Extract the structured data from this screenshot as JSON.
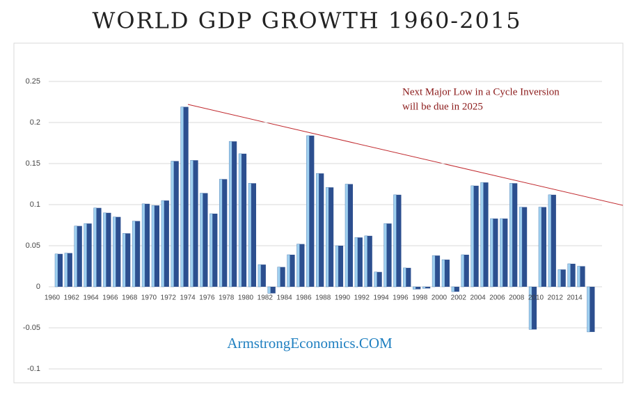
{
  "chart_data": {
    "type": "bar",
    "title": "WORLD GDP GROWTH 1960-2015",
    "annotations": [
      "Next Major Low in a Cycle Inversion",
      "will be due in 2025"
    ],
    "watermark": "ArmstrongEconomics.COM",
    "categories": [
      "1960",
      null,
      "1962",
      null,
      "1964",
      null,
      "1966",
      null,
      "1968",
      null,
      "1970",
      null,
      "1972",
      null,
      "1974",
      null,
      "1976",
      null,
      "1978",
      null,
      "1980",
      null,
      "1982",
      null,
      "1984",
      null,
      "1986",
      null,
      "1988",
      null,
      "1990",
      null,
      "1992",
      null,
      "1994",
      null,
      "1996",
      null,
      "1998",
      null,
      "2000",
      null,
      "2002",
      null,
      "2004",
      null,
      "2006",
      null,
      "2008",
      null,
      "2010",
      null,
      "2012",
      null,
      "2014",
      null
    ],
    "values": [
      0.04,
      0.041,
      0.074,
      0.077,
      0.096,
      0.09,
      0.085,
      0.065,
      0.08,
      0.101,
      0.099,
      0.105,
      0.153,
      0.219,
      0.154,
      0.114,
      0.089,
      0.131,
      0.177,
      0.162,
      0.126,
      0.027,
      -0.008,
      0.024,
      0.039,
      0.052,
      0.184,
      0.138,
      0.121,
      0.05,
      0.125,
      0.06,
      0.062,
      0.018,
      0.077,
      0.112,
      0.023,
      -0.003,
      -0.002,
      0.038,
      0.033,
      -0.006,
      0.039,
      0.123,
      0.127,
      0.083,
      0.083,
      0.126,
      0.097,
      -0.052,
      0.097,
      0.112,
      0.021,
      0.028,
      0.025,
      -0.055
    ],
    "color": "#2c4f8f",
    "ylim": [
      -0.1,
      0.25
    ],
    "yticks": [
      -0.1,
      -0.05,
      0,
      0.05,
      0.1,
      0.15,
      0.2,
      0.25
    ],
    "grid": true
  }
}
